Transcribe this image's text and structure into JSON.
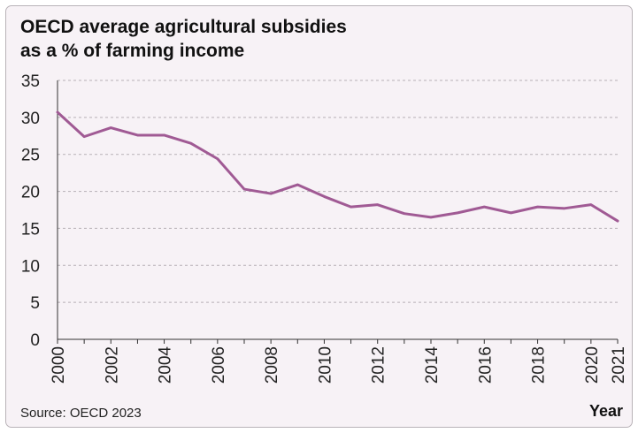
{
  "chart_data": {
    "type": "line",
    "title_line1": "OECD average agricultural subsidies",
    "title_line2": "as a % of farming income",
    "xlabel": "Year",
    "ylabel": "",
    "source": "Source: OECD 2023",
    "ylim": [
      0,
      35
    ],
    "yticks": [
      0,
      5,
      10,
      15,
      20,
      25,
      30,
      35
    ],
    "xlim": [
      2000,
      2021
    ],
    "xticks": [
      2000,
      2002,
      2004,
      2006,
      2008,
      2010,
      2012,
      2014,
      2016,
      2018,
      2020,
      2021
    ],
    "grid": true,
    "line_color": "#a05a94",
    "series": [
      {
        "x": [
          2000,
          2001,
          2002,
          2003,
          2004,
          2005,
          2006,
          2007,
          2008,
          2009,
          2010,
          2011,
          2012,
          2013,
          2014,
          2015,
          2016,
          2017,
          2018,
          2019,
          2020,
          2021
        ],
        "values": [
          30.7,
          27.4,
          28.6,
          27.6,
          27.6,
          26.5,
          24.4,
          20.3,
          19.7,
          20.9,
          19.3,
          17.9,
          18.2,
          17.0,
          16.5,
          17.1,
          17.9,
          17.1,
          17.9,
          17.7,
          18.2,
          16.0
        ]
      }
    ]
  }
}
